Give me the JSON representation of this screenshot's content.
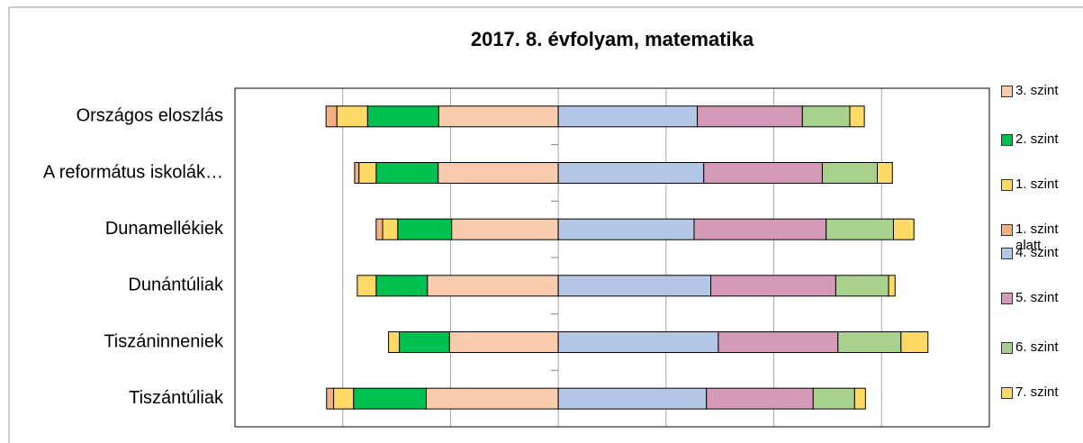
{
  "chart_data": {
    "type": "diverging_stacked_bar",
    "title": "2017. 8. évfolyam, matematika",
    "categories": [
      "Országos eloszlás",
      "A református iskolák…",
      "Dunamellékiek",
      "Dunántúliak",
      "Tiszáninneniek",
      "Tiszántúliak"
    ],
    "xlim": [
      -60,
      80
    ],
    "xticks": [
      -40,
      -20,
      0,
      20,
      40,
      60
    ],
    "grid": true,
    "legend": "right",
    "series": [
      {
        "name": "3. szint",
        "color": "#f8cbad",
        "values": [
          -22.2,
          -22.3,
          -19.8,
          -24.3,
          -20.2,
          -24.5
        ]
      },
      {
        "name": "2. szint",
        "color": "#00c050",
        "values": [
          -13.2,
          -11.5,
          -10,
          -9.5,
          -9.3,
          -13.5
        ]
      },
      {
        "name": "1. szint",
        "color": "#ffd966",
        "values": [
          -5.7,
          -3.2,
          -2.8,
          -3.5,
          -2,
          -3.7
        ]
      },
      {
        "name": "1. szint alatt",
        "color": "#f4b183",
        "values": [
          -2,
          -0.8,
          -1.2,
          0,
          0,
          -1.3
        ]
      },
      {
        "name": "4. szint",
        "color": "#b4c7e7",
        "values": [
          25.8,
          27,
          25.2,
          28.3,
          29.7,
          27.5
        ]
      },
      {
        "name": "5. szint",
        "color": "#d49ab8",
        "values": [
          19.5,
          22,
          24.5,
          23.2,
          22.2,
          19.8
        ]
      },
      {
        "name": "6. szint",
        "color": "#a9d18e",
        "values": [
          8.8,
          10.2,
          12.5,
          9.8,
          11.7,
          7.7
        ]
      },
      {
        "name": "7. szint",
        "color": "#ffd966",
        "values": [
          2.7,
          2.8,
          3.8,
          1.2,
          5,
          2
        ]
      }
    ]
  }
}
